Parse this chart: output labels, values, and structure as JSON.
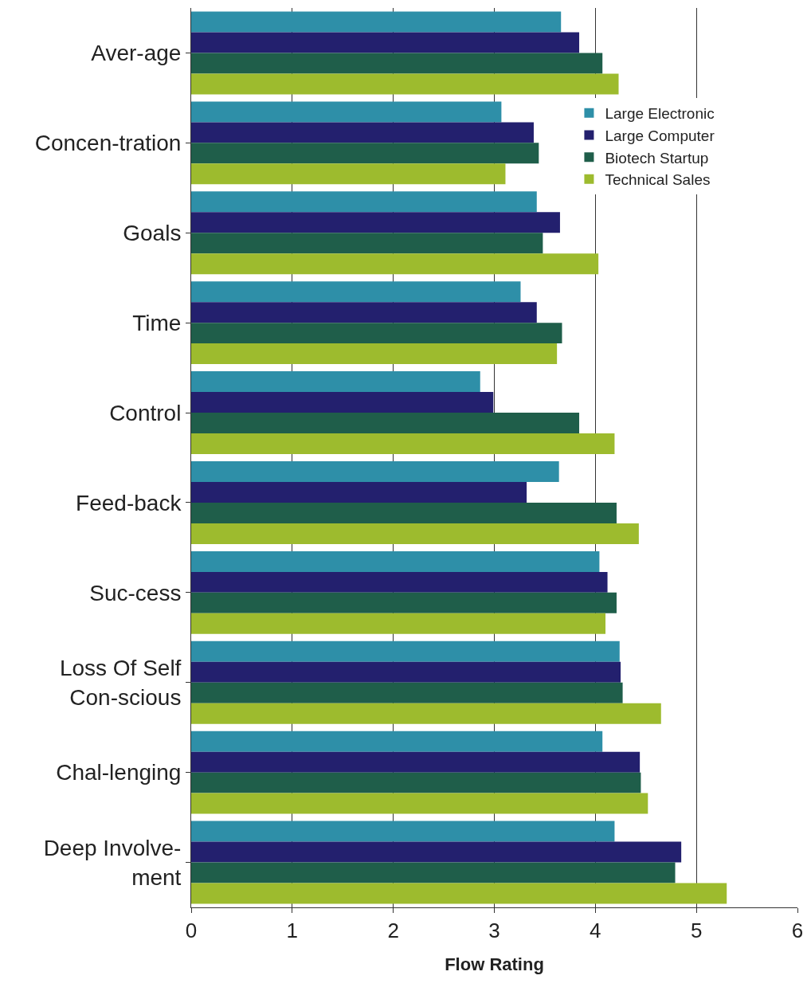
{
  "chart_data": {
    "type": "bar",
    "orientation": "horizontal",
    "xlabel": "Flow Rating",
    "categories": [
      "Aver-age",
      "Concen-tration",
      "Goals",
      "Time",
      "Control",
      "Feed-back",
      "Suc-cess",
      "Loss Of Self\nCon-scious",
      "Chal-lenging",
      "Deep Involve-\nment"
    ],
    "series": [
      {
        "name": "Large Electronic",
        "color": "#2e8fa8",
        "values": [
          3.66,
          3.07,
          3.42,
          3.26,
          2.86,
          3.64,
          4.04,
          4.24,
          4.07,
          4.19
        ]
      },
      {
        "name": "Large Computer",
        "color": "#23206e",
        "values": [
          3.84,
          3.39,
          3.65,
          3.42,
          2.99,
          3.32,
          4.12,
          4.25,
          4.44,
          4.85
        ]
      },
      {
        "name": "Biotech Startup",
        "color": "#1f5e4a",
        "values": [
          4.07,
          3.44,
          3.48,
          3.67,
          3.84,
          4.21,
          4.21,
          4.27,
          4.45,
          4.79
        ]
      },
      {
        "name": "Technical Sales",
        "color": "#9dbb2e",
        "values": [
          4.23,
          3.11,
          4.03,
          3.62,
          4.19,
          4.43,
          4.1,
          4.65,
          4.52,
          5.3
        ]
      }
    ],
    "xlim": [
      0,
      6
    ],
    "xticks": [
      0,
      1,
      2,
      3,
      4,
      5,
      6
    ],
    "grid": "x",
    "legend": "top right"
  }
}
